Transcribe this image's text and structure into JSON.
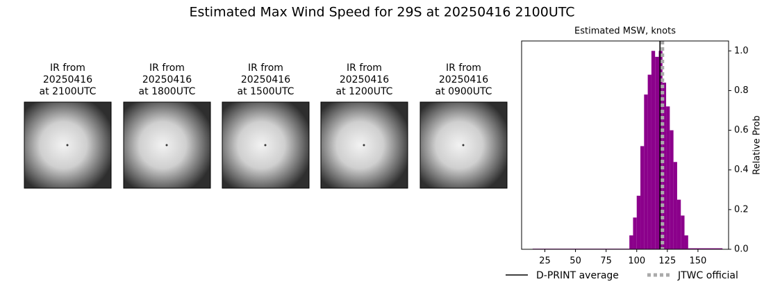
{
  "title": "Estimated Max Wind Speed for 29S at 20250416 2100UTC",
  "panels": [
    {
      "lines": [
        "IR from",
        "20250416",
        "at 2100UTC"
      ]
    },
    {
      "lines": [
        "IR from",
        "20250416",
        "at 1800UTC"
      ]
    },
    {
      "lines": [
        "IR from",
        "20250416",
        "at 1500UTC"
      ]
    },
    {
      "lines": [
        "IR from",
        "20250416",
        "at 1200UTC"
      ]
    },
    {
      "lines": [
        "IR from",
        "20250416",
        "at 0900UTC"
      ]
    }
  ],
  "chart_data": {
    "type": "histogram",
    "title": "Estimated MSW, knots",
    "y_label": "Relative Prob",
    "color": "#8b008b",
    "bins": [
      15,
      94,
      97,
      100,
      103,
      106,
      109,
      112,
      115,
      118,
      121,
      124,
      127,
      130,
      133,
      136,
      139,
      142,
      170
    ],
    "values": [
      0.003,
      0.07,
      0.16,
      0.27,
      0.52,
      0.78,
      0.88,
      1.0,
      0.97,
      1.0,
      0.84,
      0.72,
      0.6,
      0.44,
      0.25,
      0.17,
      0.07,
      0.005
    ],
    "xlim": [
      6,
      175
    ],
    "ylim": [
      0,
      1.05
    ],
    "xticks": [
      25,
      50,
      75,
      100,
      125,
      150
    ],
    "yticks": [
      {
        "value": 0,
        "label": "0.0"
      },
      {
        "value": 0.2,
        "label": "0.2"
      },
      {
        "value": 0.4,
        "label": "0.4"
      },
      {
        "value": 0.6,
        "label": "0.6"
      },
      {
        "value": 0.8,
        "label": "0.8"
      },
      {
        "value": 1,
        "label": "1.0"
      }
    ],
    "lines": [
      {
        "name": "D-PRINT average",
        "value": 119,
        "color": "#000000",
        "style": "solid"
      },
      {
        "name": "JTWC official",
        "value": 121,
        "color": "#aaaaaa",
        "style": "dotted"
      }
    ]
  }
}
